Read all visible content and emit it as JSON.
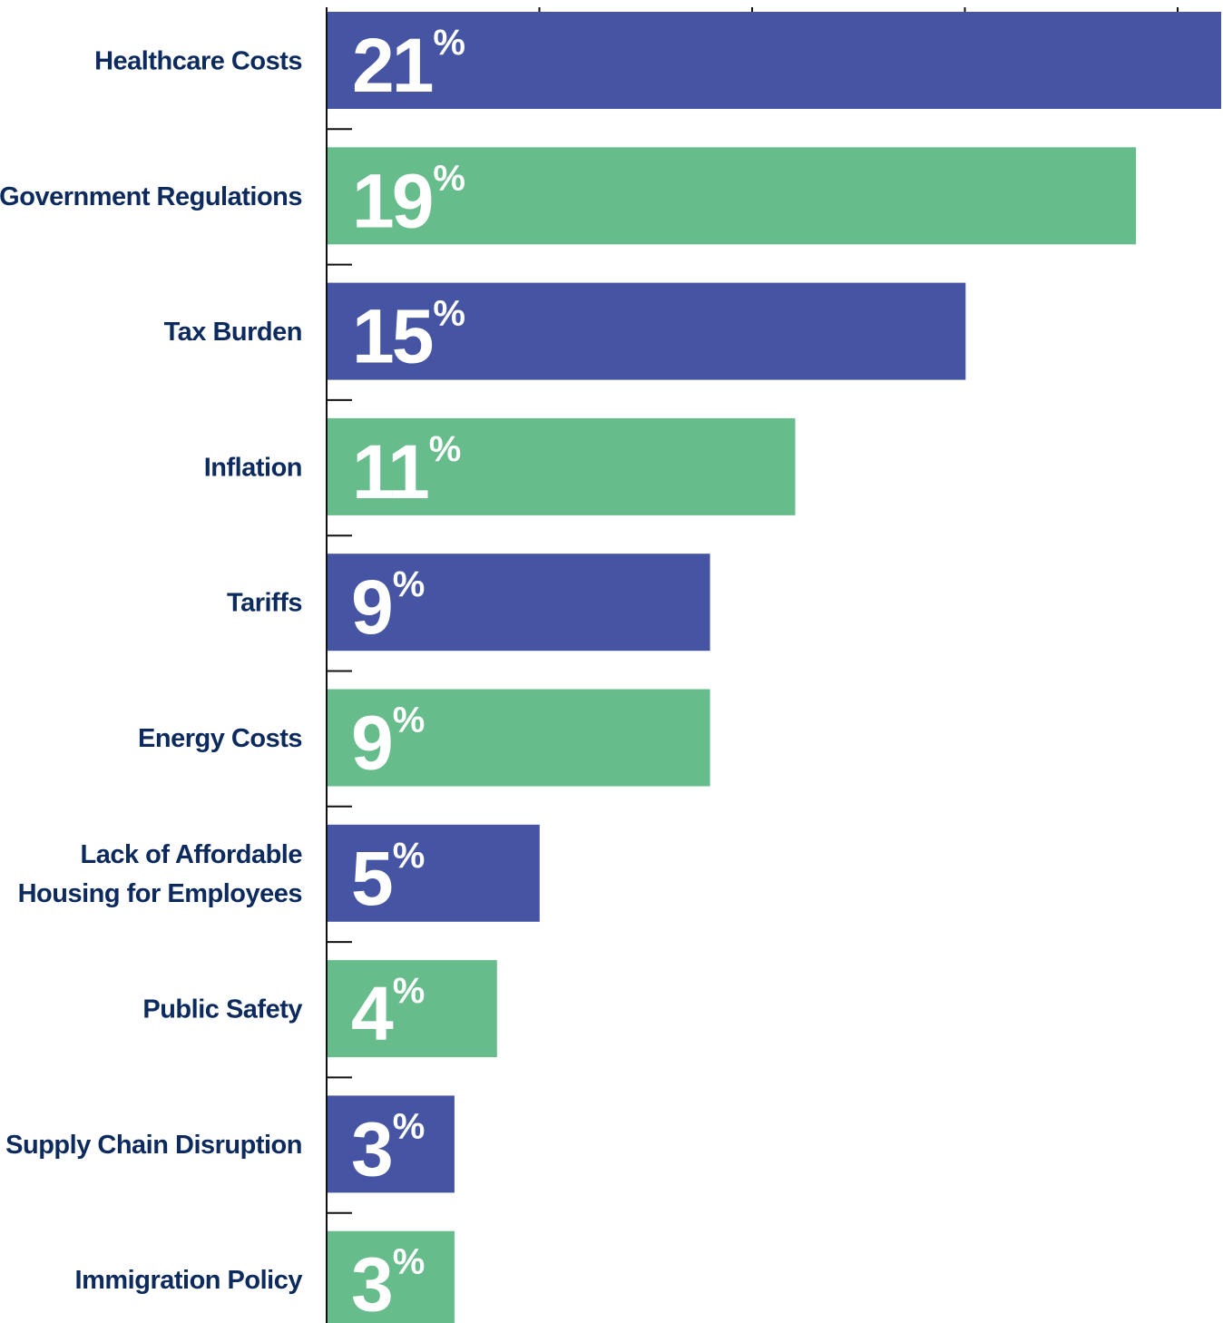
{
  "chart_data": {
    "type": "bar",
    "orientation": "horizontal",
    "title": "",
    "xlabel": "",
    "ylabel": "",
    "categories": [
      "Healthcare Costs",
      "Government Regulations",
      "Tax Burden",
      "Inflation",
      "Tariffs",
      "Energy Costs",
      "Lack of Affordable Housing for Employees",
      "Public Safety",
      "Supply Chain Disruption",
      "Immigration Policy"
    ],
    "category_lines": [
      [
        "Healthcare Costs"
      ],
      [
        "Government Regulations"
      ],
      [
        "Tax Burden"
      ],
      [
        "Inflation"
      ],
      [
        "Tariffs"
      ],
      [
        "Energy Costs"
      ],
      [
        "Lack of Affordable",
        "Housing for Employees"
      ],
      [
        "Public Safety"
      ],
      [
        "Supply Chain Disruption"
      ],
      [
        "Immigration Policy"
      ]
    ],
    "values": [
      21,
      19,
      15,
      11,
      9,
      9,
      5,
      4,
      3,
      3
    ],
    "value_labels": [
      "21",
      "19",
      "15",
      "11",
      "9",
      "9",
      "5",
      "4",
      "3",
      "3"
    ],
    "value_suffix": "%",
    "xlim": [
      0,
      21
    ],
    "grid": false,
    "legend": "none",
    "colors": [
      "#4555a4",
      "#67bc8c"
    ]
  }
}
